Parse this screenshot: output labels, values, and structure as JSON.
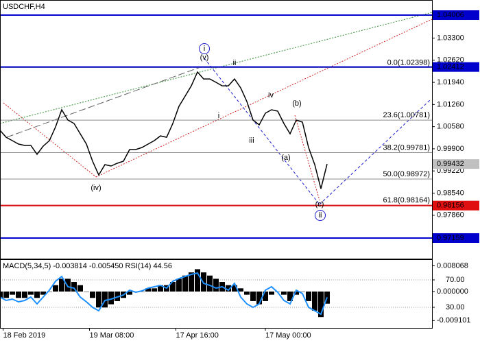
{
  "chart_data": [
    {
      "type": "line",
      "title": "USDCHF,H4",
      "x": [
        0,
        2,
        4,
        6,
        8,
        10,
        12,
        14,
        16,
        18,
        20,
        22,
        24,
        26,
        28,
        30,
        32,
        34,
        36,
        38,
        40,
        42,
        44,
        46,
        48,
        50,
        52,
        54,
        56,
        58,
        60,
        62,
        64,
        66,
        68,
        70,
        72,
        74,
        76,
        78,
        80,
        82,
        84,
        86,
        88,
        90,
        92,
        94,
        96,
        98,
        100,
        102,
        104,
        106
      ],
      "xlim": [
        0,
        140
      ],
      "xticks": [
        {
          "value": 1,
          "label": "18 Feb 2019"
        },
        {
          "value": 29,
          "label": "19 Mar 08:00"
        },
        {
          "value": 57,
          "label": "17 Apr 16:00"
        },
        {
          "value": 86,
          "label": "17 May 00:00"
        }
      ],
      "ylim": [
        0.96506,
        1.0447
      ],
      "yticks": [
        {
          "value": 1.033,
          "label": "1.03300"
        },
        {
          "value": 1.0262,
          "label": "1.02620"
        },
        {
          "value": 1.0194,
          "label": "1.01940"
        },
        {
          "value": 1.0126,
          "label": "1.01260"
        },
        {
          "value": 1.0058,
          "label": "1.00580"
        },
        {
          "value": 0.999,
          "label": "0.99900"
        },
        {
          "value": 0.9922,
          "label": "0.99220"
        },
        {
          "value": 0.9854,
          "label": "0.98540"
        },
        {
          "value": 0.9786,
          "label": "0.97860"
        }
      ],
      "series": [
        {
          "color": "#000000",
          "values": [
            1.00466,
            1.00255,
            1.0015,
            1.00045,
            1.00003,
            1.00003,
            0.99729,
            0.99982,
            1.0015,
            1.00572,
            1.01098,
            1.00782,
            1.00677,
            1.00361,
            1.00045,
            0.99518,
            0.99097,
            0.99413,
            0.99371,
            0.99455,
            0.99518,
            0.99876,
            0.99876,
            0.9994,
            1.00045,
            1.0015,
            1.00297,
            1.00255,
            1.00677,
            1.01204,
            1.01519,
            1.01835,
            1.02257,
            1.02046,
            1.02046,
            1.01941,
            1.01835,
            1.01835,
            1.02046,
            1.01772,
            1.01351,
            1.00782,
            1.00635,
            1.00993,
            1.01098,
            1.01056,
            1.00677,
            1.00361,
            1.00782,
            1.00719,
            0.9994,
            0.99413,
            0.98675,
            0.99432
          ]
        }
      ],
      "levels": [
        {
          "value": 1.04006,
          "label": "1.04006",
          "color": "#0000cd"
        },
        {
          "value": 1.02412,
          "label": "1.02412",
          "color": "#0000cd"
        },
        {
          "value": 0.98156,
          "label": "0.98156",
          "color": "#e01010"
        },
        {
          "value": 0.97159,
          "label": "0.97159",
          "color": "#0000cd"
        }
      ],
      "last_price": {
        "value": 0.99432,
        "label": "0.99432",
        "color": "#c0c0c0"
      },
      "fib_levels": [
        {
          "value": 1.02398,
          "label": "0.0(1.02398)"
        },
        {
          "value": 1.00781,
          "label": "23.6(1.00781)"
        },
        {
          "value": 0.99781,
          "label": "38.2(0.99781)"
        },
        {
          "value": 0.98972,
          "label": "50.0(0.98972)"
        },
        {
          "value": 0.98164,
          "label": "61.8(0.98164)"
        }
      ],
      "wave_labels": [
        {
          "text": "i",
          "color": "#1a1acd"
        },
        {
          "text": "(v)",
          "color": "#e01010"
        },
        {
          "text": "ii",
          "color": "#808080"
        },
        {
          "text": "i",
          "color": "#808080"
        },
        {
          "text": "iii",
          "color": "#808080"
        },
        {
          "text": "iv",
          "color": "#808080"
        },
        {
          "text": "(iv)",
          "color": "#e01010"
        },
        {
          "text": "(a)",
          "color": "#e01010"
        },
        {
          "text": "(b)",
          "color": "#e01010"
        },
        {
          "text": "(c)",
          "color": "#e01010"
        },
        {
          "text": "ii",
          "color": "#1a1acd"
        }
      ]
    },
    {
      "type": "bar",
      "title": "MACD(5,34,5) -0.003814 -0.005450 RSI(14) 44.56",
      "ylim": [
        -0.0114,
        0.0101
      ],
      "yticks": [
        {
          "value": 0.008068,
          "label": "0.008068"
        },
        {
          "value": 0,
          "label": "0.000000"
        },
        {
          "value": -0.009101,
          "label": "-0.009101"
        }
      ],
      "y2lim": [
        0,
        100
      ],
      "y2ticks": [
        {
          "value": 70,
          "label": "70.00"
        },
        {
          "value": 30,
          "label": "30.00"
        }
      ],
      "series": [
        {
          "color": "#000000",
          "values": [
            -0.002,
            -0.002,
            -0.001,
            -0.002,
            -0.002,
            -0.001,
            -0.002,
            -0.001,
            0,
            0.002,
            0.004,
            0.004,
            0.003,
            0.002,
            0,
            -0.002,
            -0.005,
            -0.005,
            -0.004,
            -0.003,
            -0.002,
            -0.001,
            0,
            0,
            0.001,
            0.001,
            0.002,
            0.002,
            0.003,
            0.004,
            0.005,
            0.006,
            0.007,
            0.006,
            0.005,
            0.004,
            0.003,
            0.002,
            0.002,
            0.001,
            -0.001,
            -0.003,
            -0.004,
            -0.003,
            -0.001,
            0,
            -0.001,
            -0.003,
            -0.001,
            0,
            -0.003,
            -0.006,
            -0.008,
            -0.003814
          ]
        },
        {
          "color": "#1e90ff",
          "axis": "y2",
          "values": [
            45,
            40,
            42,
            38,
            40,
            45,
            35,
            45,
            55,
            68,
            75,
            60,
            58,
            45,
            38,
            30,
            25,
            40,
            42,
            45,
            48,
            55,
            52,
            54,
            58,
            60,
            62,
            58,
            68,
            72,
            75,
            78,
            80,
            65,
            62,
            58,
            60,
            55,
            65,
            45,
            35,
            30,
            35,
            55,
            60,
            52,
            40,
            35,
            55,
            50,
            30,
            25,
            20,
            44.56
          ]
        }
      ]
    }
  ]
}
